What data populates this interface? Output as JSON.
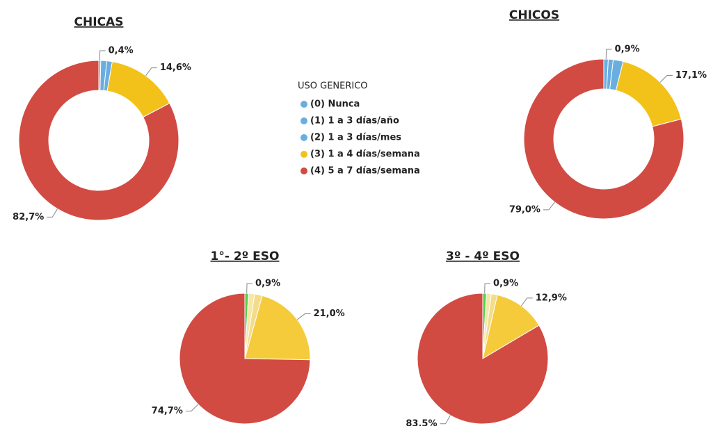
{
  "legend_title": "USO GENERICO",
  "chart_data": [
    {
      "type": "donut",
      "title": "CHICAS",
      "categories": [
        "(0) Nunca",
        "(1) 1 a 3 días/año",
        "(2) 1 a 3 días/mes",
        "(3) 1 a 4 días/semana",
        "(4) 5 a 7 días/semana"
      ],
      "values": [
        0.4,
        1.2,
        1.1,
        14.6,
        82.7
      ],
      "value_labels": [
        "0,4%",
        null,
        null,
        "14,6%",
        "82,7%"
      ],
      "colors": [
        "#6aaee0",
        "#6aaee0",
        "#6aaee0",
        "#f2c21b",
        "#d14b43"
      ]
    },
    {
      "type": "donut",
      "title": "CHICOS",
      "categories": [
        "(0) Nunca",
        "(1) 1 a 3 días/año",
        "(2) 1 a 3 días/mes",
        "(3) 1 a 4 días/semana",
        "(4) 5 a 7 días/semana"
      ],
      "values": [
        0.9,
        1.0,
        2.0,
        17.1,
        79.0
      ],
      "value_labels": [
        "0,9%",
        null,
        null,
        "17,1%",
        "79,0%"
      ],
      "colors": [
        "#6aaee0",
        "#6aaee0",
        "#6aaee0",
        "#f2c21b",
        "#d14b43"
      ]
    },
    {
      "type": "pie",
      "title": "1°- 2º ESO",
      "categories": [
        "(0) Nunca",
        "(1) 1 a 3 días/año",
        "(2) 1 a 3 días/mes",
        "(3) 1 a 4 días/semana",
        "(4) 5 a 7 días/semana"
      ],
      "values": [
        0.9,
        1.5,
        1.9,
        21.0,
        74.7
      ],
      "value_labels": [
        "0,9%",
        null,
        null,
        "21,0%",
        "74,7%"
      ],
      "colors": [
        "#4fd24f",
        "#f6e7a6",
        "#f3dc8a",
        "#f5cb3c",
        "#d14b43"
      ]
    },
    {
      "type": "pie",
      "title": "3º - 4º ESO",
      "categories": [
        "(0) Nunca",
        "(1) 1 a 3 días/año",
        "(2) 1 a 3 días/mes",
        "(3) 1 a 4 días/semana",
        "(4) 5 a 7 días/semana"
      ],
      "values": [
        0.9,
        1.2,
        1.5,
        12.9,
        83.5
      ],
      "value_labels": [
        "0,9%",
        null,
        null,
        "12,9%",
        "83,5%"
      ],
      "colors": [
        "#4fd24f",
        "#f6e7a6",
        "#f3dc8a",
        "#f5cb3c",
        "#d14b43"
      ]
    }
  ]
}
